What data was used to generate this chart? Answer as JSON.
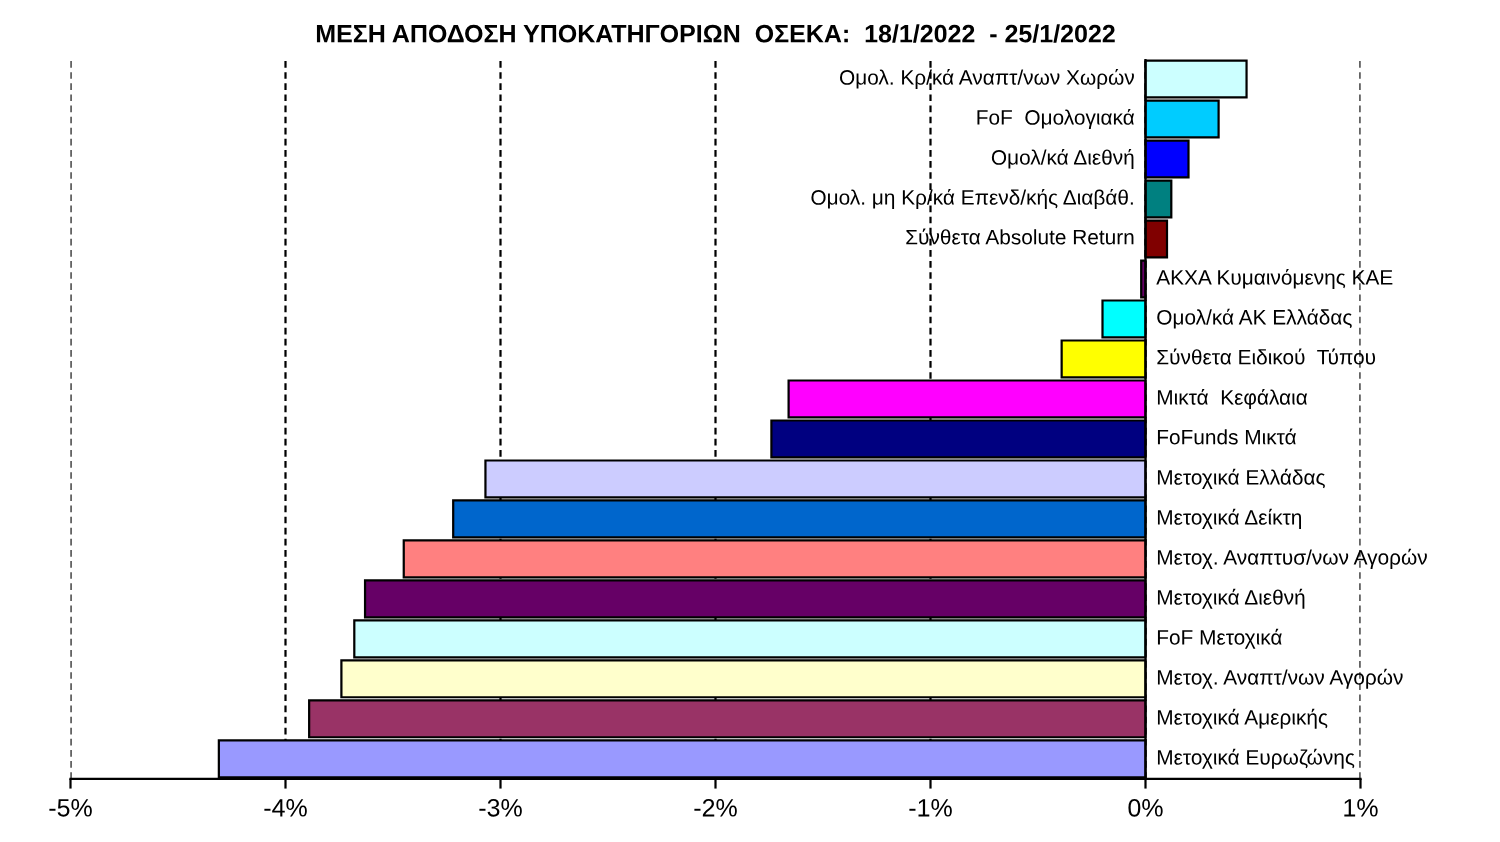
{
  "chart_data": {
    "type": "bar",
    "orientation": "horizontal",
    "title": "ΜΕΣΗ ΑΠΟΔΟΣΗ ΥΠΟΚΑΤΗΓΟΡΙΩΝ  ΟΣΕΚΑ:  18/1/2022  - 25/1/2022",
    "categories": [
      "Ομολ. Κρ/κά Αναπτ/νων Χωρών",
      "FoF  Ομολογιακά",
      "Ομολ/κά Διεθνή",
      "Ομολ. μη Κρ/κά Επενδ/κής Διαβάθ.",
      "Σύνθετα Absolute Return",
      "ΑΚΧΑ Κυμαινόμενης ΚΑΕ",
      "Ομολ/κά ΑΚ Ελλάδας",
      "Σύνθετα Ειδικού  Τύπου",
      "Μικτά  Κεφάλαια",
      "FoFunds Μικτά",
      "Μετοχικά Ελλάδας",
      "Μετοχικά Δείκτη",
      "Μετοχ. Αναπτυσ/νων Αγορών",
      "Μετοχικά Διεθνή",
      "FoF Μετοχικά",
      "Μετοχ. Αναπτ/νων Αγορών",
      "Μετοχικά Αμερικής",
      "Μετοχικά Ευρωζώνης"
    ],
    "values": [
      0.47,
      0.34,
      0.2,
      0.12,
      0.1,
      -0.02,
      -0.2,
      -0.39,
      -1.66,
      -1.74,
      -3.07,
      -3.22,
      -3.45,
      -3.63,
      -3.68,
      -3.74,
      -3.89,
      -4.31
    ],
    "colors": [
      "#ccffff",
      "#00ccff",
      "#0000ff",
      "#008080",
      "#800000",
      "#660066",
      "#00ffff",
      "#ffff00",
      "#ff00ff",
      "#000080",
      "#ccccff",
      "#0066cc",
      "#ff8080",
      "#660066",
      "#ccffff",
      "#ffffcc",
      "#993366",
      "#9999ff"
    ],
    "xlim": [
      -5,
      1
    ],
    "xticks": [
      {
        "value": -5,
        "label": "-5%"
      },
      {
        "value": -4,
        "label": "-4%"
      },
      {
        "value": -3,
        "label": "-3%"
      },
      {
        "value": -2,
        "label": "-2%"
      },
      {
        "value": -1,
        "label": "-1%"
      },
      {
        "value": 0,
        "label": "0%"
      },
      {
        "value": 1,
        "label": "1%"
      }
    ],
    "grid": "x"
  }
}
